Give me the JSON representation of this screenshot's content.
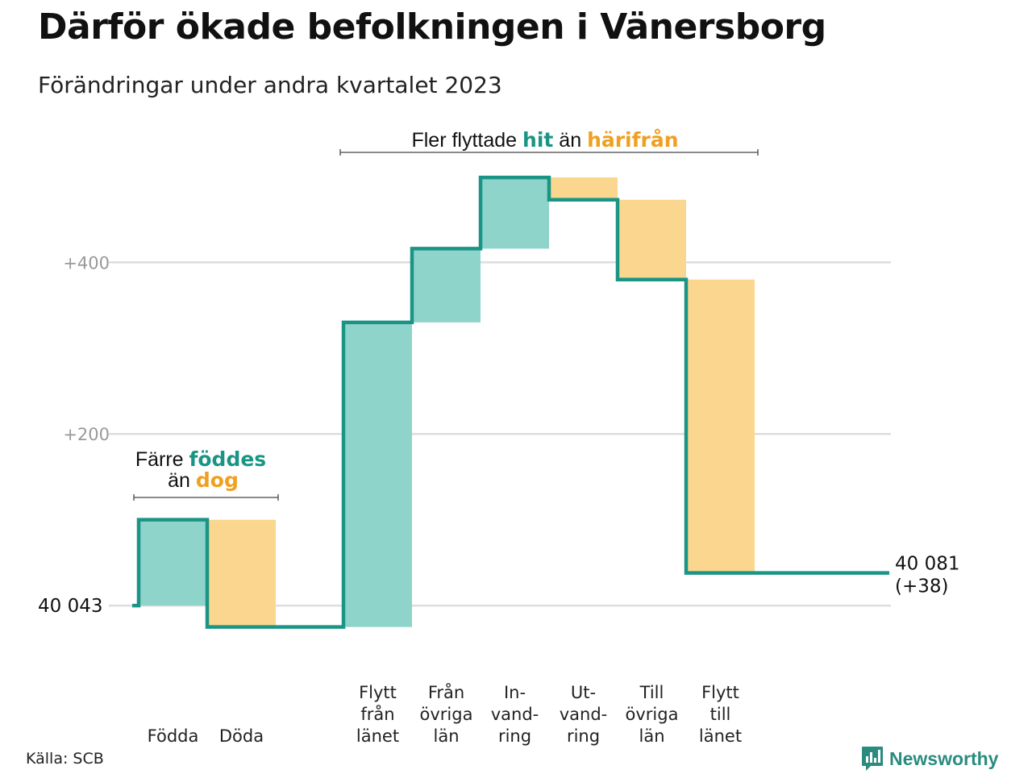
{
  "title": "Därför ökade befolkningen i Vänersborg",
  "subtitle": "Förändringar under andra kvartalet 2023",
  "source": "Källa: SCB",
  "logo_text": "Newsworthy",
  "colors": {
    "inflow": "#8ed4cb",
    "outflow": "#fbd68e",
    "line": "#1a9585",
    "inflow_text": "#1a9585",
    "outflow_text": "#f0a020",
    "grid": "#dddddd",
    "tick_text": "#999999"
  },
  "annotations": {
    "natural": {
      "prefix": "Färre",
      "highlight1": "föddes",
      "middle": "än",
      "highlight2": "dog"
    },
    "migration": {
      "prefix": "Fler flyttade",
      "highlight1": "hit",
      "middle": "än",
      "highlight2": "härifrån"
    }
  },
  "chart_data": {
    "type": "waterfall",
    "start_value": 40043,
    "start_label": "40  043",
    "end_value": 40081,
    "end_label_line1": "40 081",
    "end_label_line2": "(+38)",
    "ylim": [
      -30,
      500
    ],
    "y_ticks": [
      {
        "value": 200,
        "label": "+200"
      },
      {
        "value": 400,
        "label": "+400"
      }
    ],
    "grid": true,
    "steps": [
      {
        "label": [
          "Födda"
        ],
        "value": 100,
        "kind": "inflow",
        "group": "natural"
      },
      {
        "label": [
          "Döda"
        ],
        "value": -125,
        "kind": "outflow",
        "group": "natural"
      },
      {
        "label": [
          "Flytt",
          "från",
          "länet"
        ],
        "value": 355,
        "kind": "inflow",
        "group": "migration"
      },
      {
        "label": [
          "Från",
          "övriga",
          "län"
        ],
        "value": 86,
        "kind": "inflow",
        "group": "migration"
      },
      {
        "label": [
          "In-",
          "vand-",
          "ring"
        ],
        "value": 83,
        "kind": "inflow",
        "group": "migration"
      },
      {
        "label": [
          "Ut-",
          "vand-",
          "ring"
        ],
        "value": -26,
        "kind": "outflow",
        "group": "migration"
      },
      {
        "label": [
          "Till",
          "övriga",
          "län"
        ],
        "value": -93,
        "kind": "outflow",
        "group": "migration"
      },
      {
        "label": [
          "Flytt",
          "till",
          "länet"
        ],
        "value": -342,
        "kind": "outflow",
        "group": "migration"
      }
    ]
  }
}
